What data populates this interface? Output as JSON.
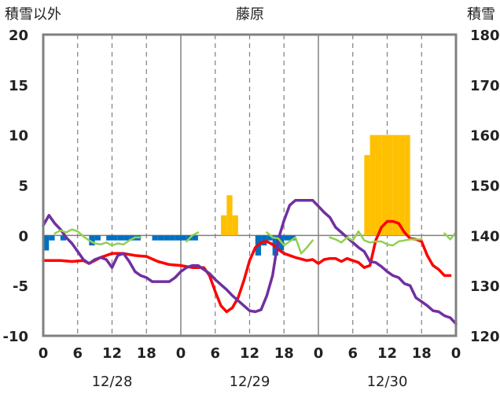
{
  "chart_data": {
    "type": "combo",
    "title": "藤原",
    "left_axis_label": "積雪以外",
    "right_axis_label": "積雪",
    "left_ylim": [
      -10,
      20
    ],
    "left_ticks": [
      "20",
      "15",
      "10",
      "5",
      "0",
      "-5",
      "-10"
    ],
    "right_ylim": [
      120,
      180
    ],
    "right_ticks": [
      "180",
      "170",
      "160",
      "150",
      "140",
      "130",
      "120"
    ],
    "xlim": [
      0,
      72
    ],
    "x_tick_labels": [
      "0",
      "6",
      "12",
      "18",
      "0",
      "6",
      "12",
      "18",
      "0",
      "6",
      "12",
      "18",
      "0"
    ],
    "date_labels": [
      "12/28",
      "12/29",
      "12/30"
    ],
    "grid": {
      "vertical_dashed_every_hours": 6,
      "vertical_solid_at_midnight": true
    },
    "colors": {
      "red": "#ff0000",
      "purple": "#7030a0",
      "green": "#92d050",
      "blue": "#0070c0",
      "orange": "#ffc000",
      "axis": "#808080",
      "grid": "#808080"
    },
    "series": [
      {
        "id": "blue_bars",
        "kind": "bar",
        "axis": "left",
        "hours": [
          1,
          2,
          4,
          9,
          10,
          12,
          13,
          14,
          15,
          16,
          17,
          20,
          21,
          22,
          23,
          24,
          25,
          26,
          27,
          38,
          39,
          40,
          41,
          42,
          43,
          44
        ],
        "values": [
          -1.5,
          -0.5,
          -0.5,
          -1.0,
          -0.5,
          -0.5,
          -0.5,
          -0.5,
          -0.5,
          -0.5,
          -0.5,
          -0.5,
          -0.5,
          -0.5,
          -0.5,
          -0.5,
          -0.5,
          -0.5,
          -0.5,
          -2.0,
          -1.0,
          -0.5,
          -2.0,
          -1.5,
          -0.5,
          -0.5
        ]
      },
      {
        "id": "orange_bars",
        "kind": "bar",
        "axis": "left",
        "hours": [
          32,
          33,
          34,
          57,
          58,
          59,
          60,
          61,
          62,
          63,
          64
        ],
        "values": [
          2.0,
          4.0,
          2.0,
          8.0,
          10.0,
          10.0,
          10.0,
          10.0,
          10.0,
          10.0,
          10.0
        ]
      },
      {
        "id": "red_line",
        "kind": "line",
        "axis": "left",
        "points": [
          [
            0,
            -2.5
          ],
          [
            3,
            -2.5
          ],
          [
            5,
            -2.6
          ],
          [
            7,
            -2.5
          ],
          [
            8,
            -2.8
          ],
          [
            10,
            -2.2
          ],
          [
            12,
            -1.8
          ],
          [
            14,
            -1.8
          ],
          [
            16,
            -2.0
          ],
          [
            18,
            -2.1
          ],
          [
            20,
            -2.6
          ],
          [
            22,
            -2.9
          ],
          [
            24,
            -3.0
          ],
          [
            26,
            -3.2
          ],
          [
            28,
            -3.2
          ],
          [
            29,
            -4.0
          ],
          [
            30,
            -5.6
          ],
          [
            31,
            -7.0
          ],
          [
            32,
            -7.6
          ],
          [
            33,
            -7.2
          ],
          [
            34,
            -6.2
          ],
          [
            35,
            -4.5
          ],
          [
            36,
            -2.5
          ],
          [
            37,
            -1.2
          ],
          [
            38,
            -0.7
          ],
          [
            39,
            -0.6
          ],
          [
            40,
            -0.9
          ],
          [
            41,
            -1.4
          ],
          [
            42,
            -1.8
          ],
          [
            44,
            -2.2
          ],
          [
            46,
            -2.5
          ],
          [
            47,
            -2.4
          ],
          [
            48,
            -2.8
          ],
          [
            49,
            -2.4
          ],
          [
            50,
            -2.3
          ],
          [
            51,
            -2.3
          ],
          [
            52,
            -2.6
          ],
          [
            53,
            -2.3
          ],
          [
            54,
            -2.5
          ],
          [
            55,
            -2.7
          ],
          [
            56,
            -3.2
          ],
          [
            57,
            -3.0
          ],
          [
            58,
            -0.5
          ],
          [
            59,
            0.8
          ],
          [
            60,
            1.4
          ],
          [
            61,
            1.4
          ],
          [
            62,
            1.2
          ],
          [
            63,
            0.3
          ],
          [
            64,
            -0.3
          ],
          [
            65,
            -0.4
          ],
          [
            66,
            -0.6
          ],
          [
            67,
            -2.0
          ],
          [
            68,
            -3.0
          ],
          [
            69,
            -3.4
          ],
          [
            70,
            -4.0
          ],
          [
            71,
            -4.0
          ]
        ]
      },
      {
        "id": "purple_line",
        "kind": "line",
        "axis": "left",
        "points": [
          [
            0,
            1.0
          ],
          [
            1,
            2.0
          ],
          [
            2,
            1.2
          ],
          [
            3,
            0.6
          ],
          [
            4,
            -0.2
          ],
          [
            5,
            -0.8
          ],
          [
            6,
            -1.6
          ],
          [
            7,
            -2.4
          ],
          [
            8,
            -2.8
          ],
          [
            9,
            -2.4
          ],
          [
            10,
            -2.2
          ],
          [
            11,
            -2.4
          ],
          [
            12,
            -3.2
          ],
          [
            13,
            -2.0
          ],
          [
            14,
            -1.8
          ],
          [
            15,
            -2.6
          ],
          [
            16,
            -3.6
          ],
          [
            17,
            -4.0
          ],
          [
            18,
            -4.2
          ],
          [
            19,
            -4.6
          ],
          [
            20,
            -4.6
          ],
          [
            21,
            -4.6
          ],
          [
            22,
            -4.6
          ],
          [
            23,
            -4.2
          ],
          [
            24,
            -3.6
          ],
          [
            25,
            -3.2
          ],
          [
            26,
            -3.0
          ],
          [
            27,
            -3.0
          ],
          [
            28,
            -3.4
          ],
          [
            29,
            -3.8
          ],
          [
            30,
            -4.4
          ],
          [
            31,
            -4.9
          ],
          [
            32,
            -5.4
          ],
          [
            33,
            -6.0
          ],
          [
            34,
            -6.5
          ],
          [
            35,
            -7.0
          ],
          [
            36,
            -7.5
          ],
          [
            37,
            -7.6
          ],
          [
            38,
            -7.4
          ],
          [
            39,
            -6.0
          ],
          [
            40,
            -4.0
          ],
          [
            41,
            -0.4
          ],
          [
            42,
            1.5
          ],
          [
            43,
            3.0
          ],
          [
            44,
            3.5
          ],
          [
            45,
            3.5
          ],
          [
            46,
            3.5
          ],
          [
            47,
            3.5
          ],
          [
            48,
            2.9
          ],
          [
            49,
            2.3
          ],
          [
            50,
            1.8
          ],
          [
            51,
            0.8
          ],
          [
            52,
            0.3
          ],
          [
            53,
            -0.2
          ],
          [
            54,
            -0.7
          ],
          [
            55,
            -1.2
          ],
          [
            56,
            -1.6
          ],
          [
            57,
            -2.6
          ],
          [
            58,
            -2.7
          ],
          [
            59,
            -3.1
          ],
          [
            60,
            -3.6
          ],
          [
            61,
            -4.0
          ],
          [
            62,
            -4.2
          ],
          [
            63,
            -4.8
          ],
          [
            64,
            -5.0
          ],
          [
            65,
            -6.2
          ],
          [
            66,
            -6.6
          ],
          [
            67,
            -7.0
          ],
          [
            68,
            -7.5
          ],
          [
            69,
            -7.6
          ],
          [
            70,
            -8.0
          ],
          [
            71,
            -8.2
          ],
          [
            72,
            -8.8
          ]
        ]
      },
      {
        "id": "green_line",
        "kind": "line",
        "axis": "left",
        "segments": [
          [
            [
              2,
              0.2
            ],
            [
              3,
              0.5
            ],
            [
              4,
              0.3
            ],
            [
              5,
              0.6
            ],
            [
              6,
              0.4
            ],
            [
              7,
              -0.1
            ],
            [
              8,
              -0.5
            ],
            [
              9,
              -0.8
            ],
            [
              10,
              -0.9
            ],
            [
              11,
              -0.7
            ],
            [
              12,
              -1.0
            ],
            [
              13,
              -0.8
            ],
            [
              14,
              -0.9
            ],
            [
              15,
              -0.5
            ],
            [
              16,
              -0.2
            ],
            [
              17,
              -0.2
            ]
          ],
          [
            [
              25,
              -0.6
            ],
            [
              26,
              0.0
            ],
            [
              27,
              0.3
            ]
          ],
          [
            [
              39,
              0.3
            ],
            [
              40,
              -0.2
            ],
            [
              41,
              -0.3
            ],
            [
              42,
              -1.0
            ],
            [
              43,
              -0.6
            ],
            [
              44,
              -0.2
            ],
            [
              45,
              -1.8
            ],
            [
              46,
              -1.2
            ],
            [
              47,
              -0.5
            ]
          ],
          [
            [
              50,
              -0.2
            ],
            [
              51,
              -0.4
            ],
            [
              52,
              -0.7
            ],
            [
              53,
              -0.2
            ],
            [
              54,
              -0.5
            ],
            [
              55,
              0.4
            ],
            [
              56,
              -0.5
            ],
            [
              57,
              -0.7
            ],
            [
              58,
              -0.6
            ],
            [
              59,
              -0.6
            ],
            [
              60,
              -0.9
            ],
            [
              61,
              -1.0
            ],
            [
              62,
              -0.6
            ],
            [
              63,
              -0.5
            ],
            [
              64,
              -0.4
            ],
            [
              65,
              -0.4
            ],
            [
              66,
              -0.4
            ]
          ],
          [
            [
              70,
              0.2
            ],
            [
              71,
              -0.4
            ],
            [
              72,
              0.3
            ]
          ]
        ]
      }
    ]
  }
}
